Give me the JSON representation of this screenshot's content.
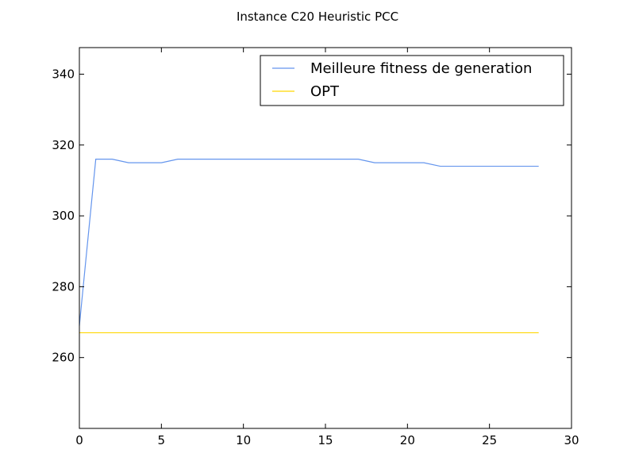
{
  "chart_data": {
    "type": "line",
    "title": "Instance C20 Heuristic PCC",
    "xlabel": "",
    "ylabel": "",
    "xlim": [
      0,
      30
    ],
    "ylim": [
      240,
      347.5
    ],
    "x_ticks": [
      0,
      5,
      10,
      15,
      20,
      25,
      30
    ],
    "y_ticks": [
      260,
      280,
      300,
      320,
      340
    ],
    "grid": false,
    "legend_position": "top-right",
    "series": [
      {
        "name": "Meilleure fitness de generation",
        "color": "#6495ED",
        "x": [
          0,
          1,
          2,
          3,
          4,
          5,
          6,
          7,
          8,
          9,
          10,
          11,
          12,
          13,
          14,
          15,
          16,
          17,
          18,
          19,
          20,
          21,
          22,
          23,
          24,
          25,
          26,
          27,
          28
        ],
        "values": [
          269,
          316,
          316,
          315,
          315,
          315,
          316,
          316,
          316,
          316,
          316,
          316,
          316,
          316,
          316,
          316,
          316,
          316,
          315,
          315,
          315,
          315,
          314,
          314,
          314,
          314,
          314,
          314,
          314
        ]
      },
      {
        "name": "OPT",
        "color": "#FFD700",
        "x": [
          0,
          28
        ],
        "values": [
          267,
          267
        ]
      }
    ]
  }
}
